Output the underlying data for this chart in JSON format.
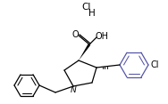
{
  "background_color": "#ffffff",
  "line_color": "#000000",
  "ring_color": "#5555aa",
  "text_color": "#000000",
  "hcl_cl": "Cl",
  "hcl_h": "H",
  "figsize": [
    1.88,
    1.17
  ],
  "dpi": 100,
  "cooh_O": "O",
  "cooh_OH": "OH",
  "Cl_label": "Cl",
  "N_label": "N"
}
